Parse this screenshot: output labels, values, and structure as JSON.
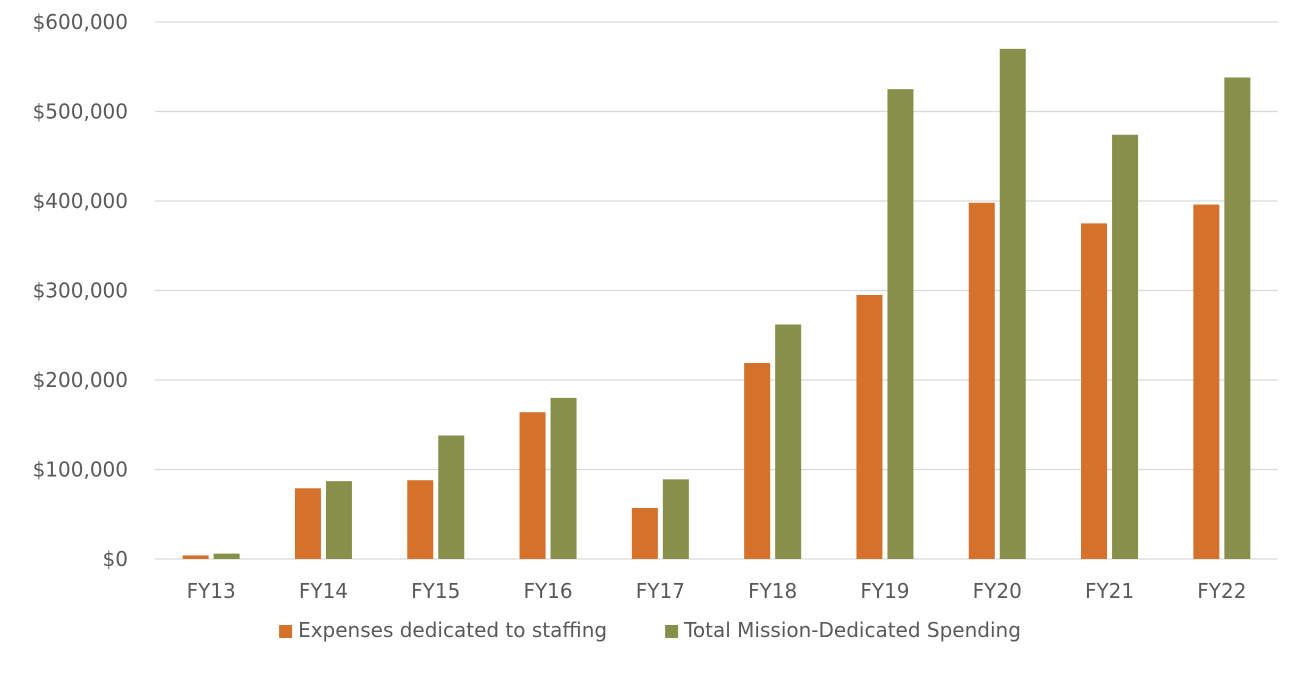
{
  "chart_data": {
    "type": "bar",
    "title": "",
    "xlabel": "",
    "ylabel": "",
    "ylim": [
      0,
      600000
    ],
    "yticks": [
      0,
      100000,
      200000,
      300000,
      400000,
      500000,
      600000
    ],
    "ytick_labels": [
      "$0",
      "$100,000",
      "$200,000",
      "$300,000",
      "$400,000",
      "$500,000",
      "$600,000"
    ],
    "grid": true,
    "legend_position": "bottom",
    "categories": [
      "FY13",
      "FY14",
      "FY15",
      "FY16",
      "FY17",
      "FY18",
      "FY19",
      "FY20",
      "FY21",
      "FY22"
    ],
    "series": [
      {
        "name": "Expenses dedicated to staffing",
        "color": "#D4712A",
        "values": [
          4000,
          79000,
          88000,
          164000,
          57000,
          219000,
          295000,
          398000,
          375000,
          396000
        ]
      },
      {
        "name": "Total Mission-Dedicated Spending",
        "color": "#86904B",
        "values": [
          6000,
          87000,
          138000,
          180000,
          89000,
          262000,
          525000,
          570000,
          474000,
          538000
        ]
      }
    ]
  }
}
